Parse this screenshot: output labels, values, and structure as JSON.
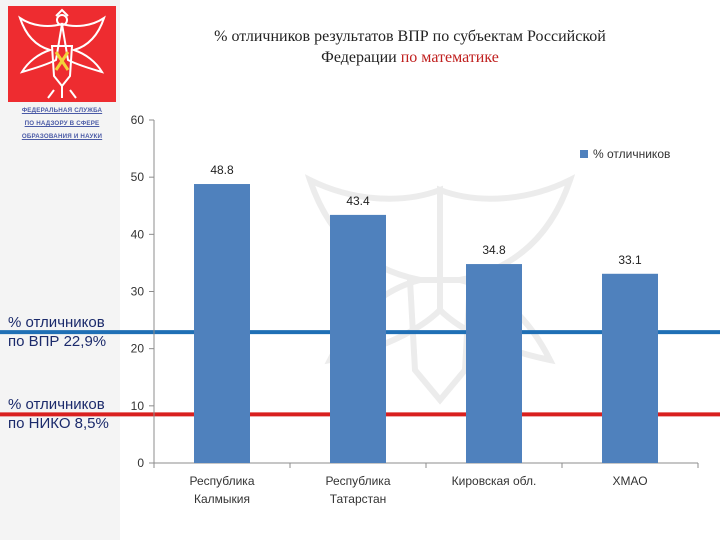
{
  "header": {
    "title_line1": "% отличников результатов ВПР по субъектам Российской",
    "title_line2_a": "Федерации ",
    "title_line2_b": "по математике"
  },
  "agency": {
    "line1": "ФЕДЕРАЛЬНАЯ СЛУЖБА",
    "line2": "ПО НАДЗОРУ В СФЕРЕ",
    "line3": "ОБРАЗОВАНИЯ И НАУКИ"
  },
  "colors": {
    "bar": "#4f81bd",
    "vpr_line": "#1f6fb5",
    "niko_line": "#d9201f",
    "accent": "#c0201f",
    "logo_bg": "#ee2c30"
  },
  "reference_lines": [
    {
      "label_line1": "% отличников",
      "label_line2": "по ВПР 22,9%",
      "value": 22.9
    },
    {
      "label_line1": "% отличников",
      "label_line2": "по НИКО 8,5%",
      "value": 8.5
    }
  ],
  "chart_data": {
    "type": "bar",
    "categories": [
      [
        "Республика",
        "Калмыкия"
      ],
      [
        "Республика",
        "Татарстан"
      ],
      [
        "Кировская обл."
      ],
      [
        "ХМАО"
      ]
    ],
    "series": [
      {
        "name": "% отличников",
        "values": [
          48.8,
          43.4,
          34.8,
          33.1
        ]
      }
    ],
    "data_labels": [
      "48.8",
      "43.4",
      "34.8",
      "33.1"
    ],
    "yticks": [
      "0",
      "10",
      "20",
      "30",
      "40",
      "50",
      "60"
    ],
    "ylim": [
      0,
      60
    ],
    "legend_position": "top-right",
    "grid": false
  }
}
